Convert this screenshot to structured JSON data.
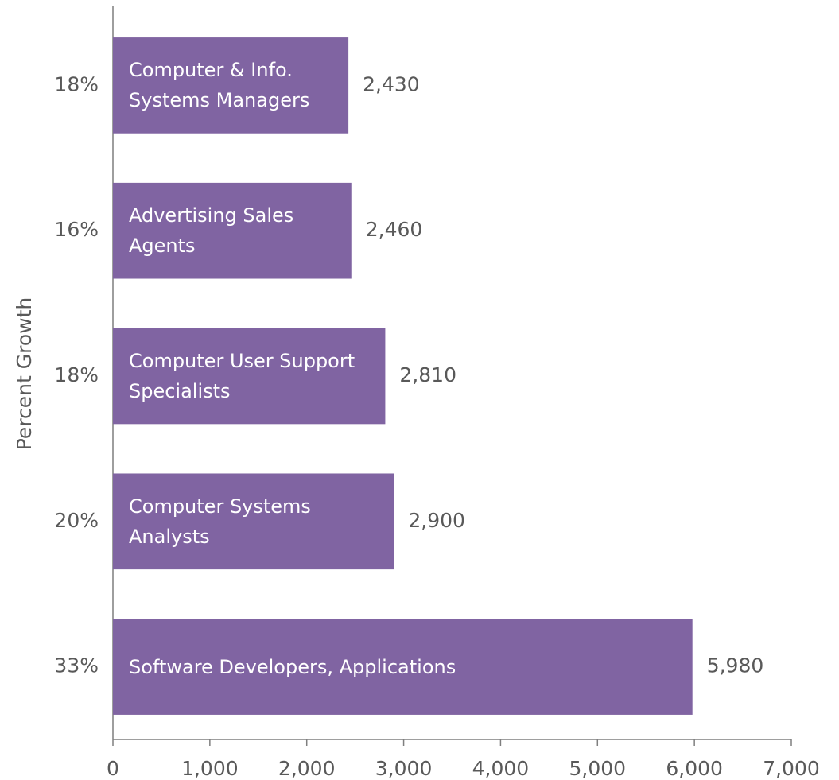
{
  "chart_data": {
    "type": "hbar",
    "y_label": "Percent Growth",
    "categories": [
      "Computer & Info.\nSystems Managers",
      "Advertising Sales\nAgents",
      "Computer User Support\nSpecialists",
      "Computer Systems\nAnalysts",
      "Software Developers, Applications"
    ],
    "percent_growth": [
      {
        "value": 18,
        "label": "18%"
      },
      {
        "value": 16,
        "label": "16%"
      },
      {
        "value": 18,
        "label": "18%"
      },
      {
        "value": 20,
        "label": "20%"
      },
      {
        "value": 33,
        "label": "33%"
      }
    ],
    "values": [
      2430,
      2460,
      2810,
      2900,
      5980
    ],
    "value_labels": [
      "2,430",
      "2,460",
      "2,810",
      "2,900",
      "5,980"
    ],
    "color": "#8064a2",
    "xlim": [
      0,
      7000
    ],
    "xticks": [
      0,
      {
        "value": 1000,
        "label": "1,000"
      },
      {
        "value": 2000,
        "label": "2,000"
      },
      {
        "value": 3000,
        "label": "3,000"
      },
      {
        "value": 4000,
        "label": "4,000"
      },
      {
        "value": 5000,
        "label": "5,000"
      },
      {
        "value": 6000,
        "label": "6,000"
      },
      {
        "value": 7000,
        "label": "7,000"
      }
    ],
    "grid": false
  }
}
